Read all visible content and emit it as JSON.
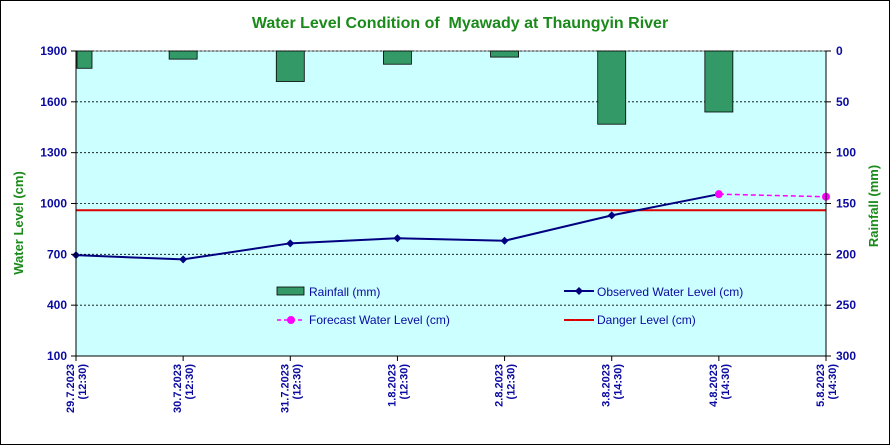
{
  "chart_data": {
    "type": "bar+line",
    "title": "Water Level Condition of  Myawady at Thaungyin River",
    "ylabel_left": "Water Level (cm)",
    "ylabel_right": "Rainfall (mm)",
    "ylim_left": [
      100,
      1900
    ],
    "yticks_left": [
      100,
      400,
      700,
      1000,
      1300,
      1600,
      1900
    ],
    "ylim_right": [
      0,
      300
    ],
    "yticks_right": [
      0,
      50,
      100,
      150,
      200,
      250,
      300
    ],
    "right_axis_inverted": true,
    "grid": "horizontal dashed",
    "categories": [
      {
        "date": "29.7.2023",
        "time": "(12:30)"
      },
      {
        "date": "30.7.2023",
        "time": "(12:30)"
      },
      {
        "date": "31.7.2023",
        "time": "(12:30)"
      },
      {
        "date": "1.8.2023",
        "time": "(12:30)"
      },
      {
        "date": "2.8.2023",
        "time": "(12:30)"
      },
      {
        "date": "3.8.2023",
        "time": "(14:30)"
      },
      {
        "date": "4.8.2023",
        "time": "(14:30)"
      },
      {
        "date": "5.8.2023",
        "time": "(14:30)"
      }
    ],
    "rainfall": {
      "name": "Rainfall (mm)",
      "color": "#339966",
      "values": [
        17,
        8,
        30,
        13,
        6,
        72,
        60
      ]
    },
    "observed": {
      "name": "Observed Water Level (cm)",
      "color": "#000080",
      "values": [
        695,
        670,
        765,
        795,
        780,
        930,
        1055
      ]
    },
    "forecast": {
      "name": "Forecast Water Level (cm)",
      "color": "#ff00ff",
      "from_index": 6,
      "values": [
        1055,
        1040
      ]
    },
    "danger": {
      "name": "Danger Level (cm)",
      "color": "#dd0000",
      "value": 960
    },
    "plot_background": "#ccffff"
  }
}
